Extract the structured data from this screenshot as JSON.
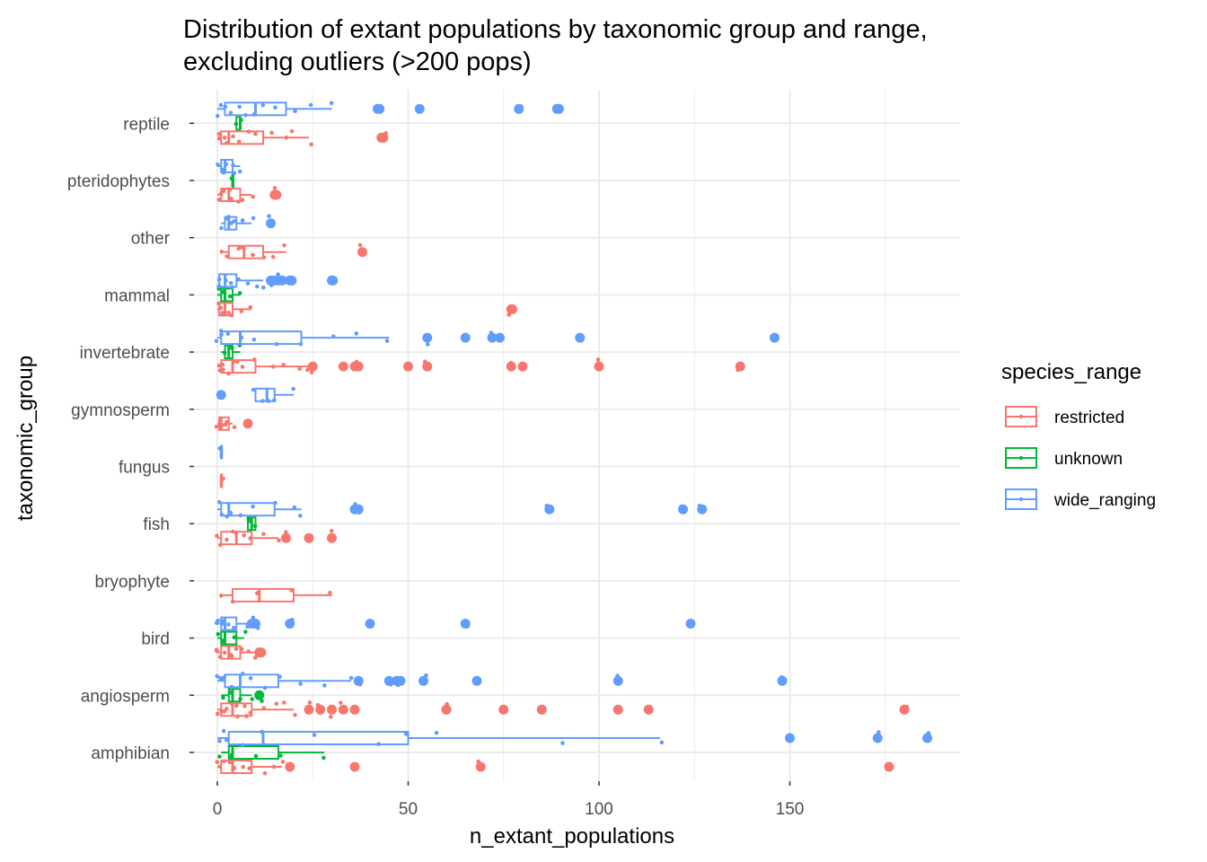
{
  "chart_data": {
    "type": "boxplot",
    "title_lines": [
      "Distribution of extant populations by taxonomic group and range,",
      "excluding outliers (>200 pops)"
    ],
    "xlabel": "n_extant_populations",
    "ylabel": "taxonomic_group",
    "xlim": [
      0,
      195
    ],
    "x_ticks": [
      0,
      50,
      100,
      150
    ],
    "orientation": "horizontal",
    "grid": true,
    "legend": {
      "title": "species_range",
      "position": "right",
      "entries": [
        {
          "key": "restricted",
          "label": "restricted",
          "color": "#F8766D"
        },
        {
          "key": "unknown",
          "label": "unknown",
          "color": "#00BA38"
        },
        {
          "key": "wide_ranging",
          "label": "wide_ranging",
          "color": "#619CFF"
        }
      ]
    },
    "categories": [
      "amphibian",
      "angiosperm",
      "bird",
      "bryophyte",
      "fish",
      "fungus",
      "gymnosperm",
      "invertebrate",
      "mammal",
      "other",
      "pteridophytes",
      "reptile"
    ],
    "groups": [
      {
        "category": "reptile",
        "boxes": [
          {
            "range": "restricted",
            "q1": 1,
            "median": 3,
            "q3": 12,
            "whisker_low": 0,
            "whisker_high": 24,
            "outliers": [
              43,
              43.5
            ],
            "points": [
              0.5,
              1,
              2,
              3,
              4,
              6,
              8,
              10,
              14,
              18,
              20,
              24,
              43,
              43.5
            ]
          },
          {
            "range": "unknown",
            "q1": 5,
            "median": 6,
            "q3": 6,
            "whisker_low": 5,
            "whisker_high": 6,
            "outliers": [],
            "points": [
              5,
              6
            ]
          },
          {
            "range": "wide_ranging",
            "q1": 2,
            "median": 10,
            "q3": 18,
            "whisker_low": 0,
            "whisker_high": 30,
            "outliers": [
              42,
              42.5,
              53,
              79,
              89,
              89.5
            ],
            "points": [
              0.5,
              1,
              2,
              4,
              6,
              8,
              10,
              12,
              15,
              20,
              25,
              30,
              42,
              53,
              79,
              89
            ]
          }
        ]
      },
      {
        "category": "pteridophytes",
        "boxes": [
          {
            "range": "restricted",
            "q1": 1,
            "median": 3,
            "q3": 6,
            "whisker_low": 0,
            "whisker_high": 9,
            "outliers": [
              15,
              15.5
            ],
            "points": [
              0.5,
              1,
              2,
              3,
              4,
              5,
              6,
              9,
              15
            ]
          },
          {
            "range": "unknown",
            "q1": 4,
            "median": 4,
            "q3": 4,
            "whisker_low": 4,
            "whisker_high": 4,
            "outliers": [],
            "points": [
              4
            ]
          },
          {
            "range": "wide_ranging",
            "q1": 1,
            "median": 2,
            "q3": 4,
            "whisker_low": 0,
            "whisker_high": 6,
            "outliers": [],
            "points": [
              0.5,
              1,
              2,
              3,
              4,
              5,
              6
            ]
          }
        ]
      },
      {
        "category": "other",
        "boxes": [
          {
            "range": "restricted",
            "q1": 3,
            "median": 7,
            "q3": 12,
            "whisker_low": 1,
            "whisker_high": 18,
            "outliers": [
              38
            ],
            "points": [
              1,
              3,
              5,
              7,
              9,
              12,
              15,
              18,
              38
            ]
          },
          {
            "range": "wide_ranging",
            "q1": 2,
            "median": 3,
            "q3": 5,
            "whisker_low": 1,
            "whisker_high": 9,
            "outliers": [
              14
            ],
            "points": [
              1,
              2,
              3,
              4,
              5,
              7,
              9,
              14
            ]
          }
        ]
      },
      {
        "category": "mammal",
        "boxes": [
          {
            "range": "restricted",
            "q1": 0.5,
            "median": 2,
            "q3": 4,
            "whisker_low": 0,
            "whisker_high": 9,
            "outliers": [
              77,
              77.3
            ],
            "points": [
              0.3,
              0.5,
              1,
              2,
              3,
              4,
              6,
              9,
              77
            ]
          },
          {
            "range": "unknown",
            "q1": 1,
            "median": 2,
            "q3": 4,
            "whisker_low": 0,
            "whisker_high": 6,
            "outliers": [],
            "points": [
              1,
              2,
              4,
              6
            ]
          },
          {
            "range": "wide_ranging",
            "q1": 0.5,
            "median": 2,
            "q3": 5,
            "whisker_low": 0,
            "whisker_high": 12,
            "outliers": [
              14,
              15,
              16,
              17,
              19,
              19.5,
              30,
              30.3
            ],
            "points": [
              0.3,
              0.5,
              1,
              2,
              3,
              4,
              5,
              8,
              10,
              12,
              14,
              16,
              19,
              30
            ]
          }
        ]
      },
      {
        "category": "invertebrate",
        "boxes": [
          {
            "range": "restricted",
            "q1": 1,
            "median": 4,
            "q3": 10,
            "whisker_low": 0,
            "whisker_high": 24,
            "outliers": [
              25,
              33,
              36,
              37,
              50,
              55,
              77,
              80,
              100,
              137
            ],
            "points": [
              0.3,
              0.5,
              1,
              2,
              3,
              4,
              5,
              7,
              10,
              14,
              18,
              22,
              24,
              25,
              33,
              36,
              37,
              50,
              55,
              77,
              80,
              100,
              137
            ]
          },
          {
            "range": "unknown",
            "q1": 2,
            "median": 3,
            "q3": 4,
            "whisker_low": 1,
            "whisker_high": 6,
            "outliers": [],
            "points": [
              2,
              3,
              4,
              6
            ]
          },
          {
            "range": "wide_ranging",
            "q1": 1,
            "median": 6,
            "q3": 22,
            "whisker_low": 0,
            "whisker_high": 45,
            "outliers": [
              55,
              65,
              72,
              74,
              95,
              146
            ],
            "points": [
              0.3,
              0.5,
              1,
              3,
              6,
              10,
              15,
              22,
              30,
              37,
              45,
              55,
              65,
              72,
              74,
              95,
              146
            ]
          }
        ]
      },
      {
        "category": "gymnosperm",
        "boxes": [
          {
            "range": "restricted",
            "q1": 0.5,
            "median": 1,
            "q3": 3,
            "whisker_low": 0,
            "whisker_high": 4,
            "outliers": [
              8
            ],
            "points": [
              0.3,
              0.5,
              1,
              2,
              3,
              4,
              8
            ]
          },
          {
            "range": "wide_ranging",
            "q1": 10,
            "median": 13,
            "q3": 15,
            "whisker_low": 10,
            "whisker_high": 20,
            "outliers": [
              1
            ],
            "points": [
              1,
              10,
              12,
              13,
              15,
              20
            ]
          }
        ]
      },
      {
        "category": "fungus",
        "boxes": [
          {
            "range": "restricted",
            "q1": 1,
            "median": 1,
            "q3": 1,
            "whisker_low": 1,
            "whisker_high": 1,
            "outliers": [],
            "points": [
              1
            ]
          },
          {
            "range": "wide_ranging",
            "q1": 1,
            "median": 1,
            "q3": 1,
            "whisker_low": 1,
            "whisker_high": 1,
            "outliers": [],
            "points": [
              1
            ]
          }
        ]
      },
      {
        "category": "fish",
        "boxes": [
          {
            "range": "restricted",
            "q1": 1,
            "median": 5,
            "q3": 9,
            "whisker_low": 0,
            "whisker_high": 16,
            "outliers": [
              18,
              24,
              30
            ],
            "points": [
              0.5,
              1,
              2,
              4,
              5,
              7,
              9,
              12,
              16,
              18,
              24,
              30
            ]
          },
          {
            "range": "unknown",
            "q1": 8,
            "median": 9,
            "q3": 10,
            "whisker_low": 8,
            "whisker_high": 10,
            "outliers": [],
            "points": [
              8,
              9,
              10
            ]
          },
          {
            "range": "wide_ranging",
            "q1": 1,
            "median": 3,
            "q3": 15,
            "whisker_low": 0,
            "whisker_high": 22,
            "outliers": [
              36,
              37,
              87,
              122,
              127
            ],
            "points": [
              0.5,
              1,
              2,
              3,
              6,
              10,
              15,
              20,
              22,
              36,
              37,
              87,
              122,
              127
            ]
          }
        ]
      },
      {
        "category": "bryophyte",
        "boxes": [
          {
            "range": "restricted",
            "q1": 4,
            "median": 11,
            "q3": 20,
            "whisker_low": 1,
            "whisker_high": 30,
            "outliers": [],
            "points": [
              1,
              4,
              11,
              20,
              30
            ]
          }
        ]
      },
      {
        "category": "bird",
        "boxes": [
          {
            "range": "restricted",
            "q1": 1,
            "median": 3,
            "q3": 6,
            "whisker_low": 0,
            "whisker_high": 10,
            "outliers": [
              11,
              11.5
            ],
            "points": [
              0.3,
              0.5,
              1,
              2,
              3,
              4,
              5,
              6,
              8,
              10,
              11
            ]
          },
          {
            "range": "unknown",
            "q1": 1,
            "median": 2,
            "q3": 5,
            "whisker_low": 0,
            "whisker_high": 7,
            "outliers": [],
            "points": [
              0.3,
              1,
              2,
              5,
              7
            ]
          },
          {
            "range": "wide_ranging",
            "q1": 1,
            "median": 2,
            "q3": 5,
            "whisker_low": 0,
            "whisker_high": 8,
            "outliers": [
              9,
              10,
              19,
              40,
              65,
              124
            ],
            "points": [
              0.3,
              0.5,
              1,
              2,
              3,
              5,
              8,
              9,
              10,
              19,
              40,
              65,
              124
            ]
          }
        ]
      },
      {
        "category": "angiosperm",
        "boxes": [
          {
            "range": "restricted",
            "q1": 1,
            "median": 4,
            "q3": 9,
            "whisker_low": 0,
            "whisker_high": 20,
            "outliers": [
              24,
              27,
              30,
              33,
              36,
              60,
              75,
              85,
              105,
              113,
              180
            ],
            "points": [
              0.3,
              0.5,
              1,
              2,
              3,
              4,
              5,
              6,
              7,
              8,
              9,
              12,
              15,
              18,
              20,
              24,
              27,
              30,
              33,
              36,
              60,
              75,
              85,
              105,
              113,
              180
            ]
          },
          {
            "range": "unknown",
            "q1": 3,
            "median": 4,
            "q3": 6,
            "whisker_low": 1,
            "whisker_high": 9,
            "outliers": [
              11
            ],
            "points": [
              1,
              3,
              4,
              6,
              9,
              11
            ]
          },
          {
            "range": "wide_ranging",
            "q1": 2,
            "median": 6,
            "q3": 16,
            "whisker_low": 0,
            "whisker_high": 35,
            "outliers": [
              37,
              45,
              47,
              48,
              54,
              68,
              105,
              148
            ],
            "points": [
              0.3,
              0.5,
              1,
              2,
              4,
              6,
              9,
              12,
              16,
              22,
              28,
              35,
              37,
              45,
              47,
              48,
              54,
              68,
              105,
              148
            ]
          }
        ]
      },
      {
        "category": "amphibian",
        "boxes": [
          {
            "range": "restricted",
            "q1": 1,
            "median": 4,
            "q3": 9,
            "whisker_low": 0,
            "whisker_high": 17,
            "outliers": [
              19,
              36,
              69,
              176
            ],
            "points": [
              0.3,
              0.5,
              1,
              2,
              3,
              4,
              5,
              7,
              9,
              12,
              15,
              17,
              19,
              36,
              69,
              176
            ]
          },
          {
            "range": "unknown",
            "q1": 3,
            "median": 4,
            "q3": 16,
            "whisker_low": 1,
            "whisker_high": 28,
            "outliers": [],
            "points": [
              1,
              3,
              4,
              10,
              16,
              28
            ]
          },
          {
            "range": "wide_ranging",
            "q1": 3,
            "median": 12,
            "q3": 50,
            "whisker_low": 0,
            "whisker_high": 116,
            "outliers": [
              150,
              173,
              186
            ],
            "points": [
              0.3,
              1,
              3,
              6,
              12,
              25,
              42,
              50,
              57,
              91,
              116,
              150,
              173,
              186
            ]
          }
        ]
      }
    ]
  }
}
